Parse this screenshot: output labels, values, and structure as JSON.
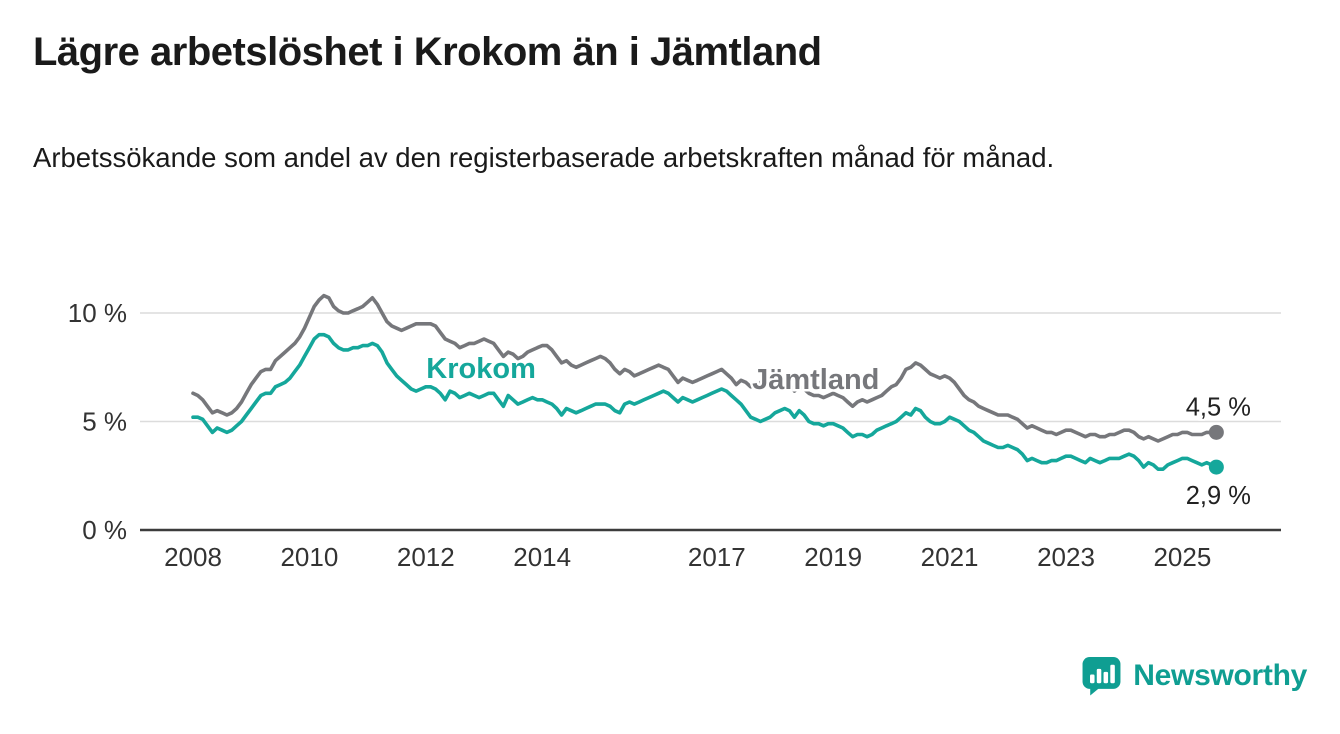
{
  "page": {
    "title": "Lägre arbetslöshet i Krokom än i Jämtland",
    "subtitle": "Arbetssökande som andel av den registerbaserade arbetskraften månad för månad."
  },
  "branding": {
    "name": "Newsworthy",
    "color": "#0f9e92",
    "icon": "bar-chart-speech-bubble-icon"
  },
  "chart_data": {
    "type": "line",
    "title": "Lägre arbetslöshet i Krokom än i Jämtland",
    "subtitle": "Arbetssökande som andel av den registerbaserade arbetskraften månad för månad.",
    "unit": "%",
    "grid": "horizontal",
    "legend_position": "inline-labels",
    "x_start": 2008.0,
    "x_step": 0.0833333,
    "x_end": 2025.5833,
    "ylim": [
      0,
      12
    ],
    "y_axis": {
      "ticks": [
        {
          "value": 0,
          "label": "0 %"
        },
        {
          "value": 5,
          "label": "5 %"
        },
        {
          "value": 10,
          "label": "10 %"
        }
      ]
    },
    "x_axis": {
      "ticks": [
        {
          "value": 2008,
          "label": "2008"
        },
        {
          "value": 2010,
          "label": "2010"
        },
        {
          "value": 2012,
          "label": "2012"
        },
        {
          "value": 2014,
          "label": "2014"
        },
        {
          "value": 2017,
          "label": "2017"
        },
        {
          "value": 2019,
          "label": "2019"
        },
        {
          "value": 2021,
          "label": "2021"
        },
        {
          "value": 2023,
          "label": "2023"
        },
        {
          "value": 2025,
          "label": "2025"
        }
      ]
    },
    "series": [
      {
        "name": "Jämtland",
        "color": "#76777b",
        "end_value": 4.5,
        "end_label": "4,5 %",
        "end_label_side": "above",
        "name_label_at": {
          "x": 2018.7,
          "y": 6.5
        },
        "values": [
          6.3,
          6.2,
          6.0,
          5.7,
          5.4,
          5.5,
          5.4,
          5.3,
          5.4,
          5.6,
          5.9,
          6.3,
          6.7,
          7.0,
          7.3,
          7.4,
          7.4,
          7.8,
          8.0,
          8.2,
          8.4,
          8.6,
          8.9,
          9.3,
          9.8,
          10.3,
          10.6,
          10.8,
          10.7,
          10.3,
          10.1,
          10.0,
          10.0,
          10.1,
          10.2,
          10.3,
          10.5,
          10.7,
          10.4,
          10.0,
          9.6,
          9.4,
          9.3,
          9.2,
          9.3,
          9.4,
          9.5,
          9.5,
          9.5,
          9.5,
          9.4,
          9.1,
          8.8,
          8.7,
          8.6,
          8.4,
          8.5,
          8.6,
          8.6,
          8.7,
          8.8,
          8.7,
          8.6,
          8.3,
          8.0,
          8.2,
          8.1,
          7.9,
          8.0,
          8.2,
          8.3,
          8.4,
          8.5,
          8.5,
          8.3,
          8.0,
          7.7,
          7.8,
          7.6,
          7.5,
          7.6,
          7.7,
          7.8,
          7.9,
          8.0,
          7.9,
          7.7,
          7.4,
          7.2,
          7.4,
          7.3,
          7.1,
          7.2,
          7.3,
          7.4,
          7.5,
          7.6,
          7.5,
          7.4,
          7.1,
          6.8,
          7.0,
          6.9,
          6.8,
          6.9,
          7.0,
          7.1,
          7.2,
          7.3,
          7.4,
          7.2,
          7.0,
          6.7,
          6.9,
          6.8,
          6.6,
          6.7,
          6.8,
          6.9,
          7.0,
          7.1,
          7.0,
          6.9,
          6.7,
          6.4,
          6.6,
          6.5,
          6.3,
          6.2,
          6.2,
          6.1,
          6.2,
          6.3,
          6.2,
          6.1,
          5.9,
          5.7,
          5.9,
          6.0,
          5.9,
          6.0,
          6.1,
          6.2,
          6.4,
          6.6,
          6.7,
          7.0,
          7.4,
          7.5,
          7.7,
          7.6,
          7.4,
          7.2,
          7.1,
          7.0,
          7.1,
          7.0,
          6.8,
          6.5,
          6.2,
          6.0,
          5.9,
          5.7,
          5.6,
          5.5,
          5.4,
          5.3,
          5.3,
          5.3,
          5.2,
          5.1,
          4.9,
          4.7,
          4.8,
          4.7,
          4.6,
          4.5,
          4.5,
          4.4,
          4.5,
          4.6,
          4.6,
          4.5,
          4.4,
          4.3,
          4.4,
          4.4,
          4.3,
          4.3,
          4.4,
          4.4,
          4.5,
          4.6,
          4.6,
          4.5,
          4.3,
          4.2,
          4.3,
          4.2,
          4.1,
          4.2,
          4.3,
          4.4,
          4.4,
          4.5,
          4.5,
          4.4,
          4.4,
          4.4,
          4.5,
          4.5,
          4.5
        ]
      },
      {
        "name": "Krokom",
        "color": "#15a79b",
        "end_value": 2.9,
        "end_label": "2,9 %",
        "end_label_side": "below",
        "name_label_at": {
          "x": 2012.95,
          "y": 7.0
        },
        "values": [
          5.2,
          5.2,
          5.1,
          4.8,
          4.5,
          4.7,
          4.6,
          4.5,
          4.6,
          4.8,
          5.0,
          5.3,
          5.6,
          5.9,
          6.2,
          6.3,
          6.3,
          6.6,
          6.7,
          6.8,
          7.0,
          7.3,
          7.6,
          8.0,
          8.4,
          8.8,
          9.0,
          9.0,
          8.9,
          8.6,
          8.4,
          8.3,
          8.3,
          8.4,
          8.4,
          8.5,
          8.5,
          8.6,
          8.5,
          8.2,
          7.7,
          7.4,
          7.1,
          6.9,
          6.7,
          6.5,
          6.4,
          6.5,
          6.6,
          6.6,
          6.5,
          6.3,
          6.0,
          6.4,
          6.3,
          6.1,
          6.2,
          6.3,
          6.2,
          6.1,
          6.2,
          6.3,
          6.3,
          6.0,
          5.7,
          6.2,
          6.0,
          5.8,
          5.9,
          6.0,
          6.1,
          6.0,
          6.0,
          5.9,
          5.8,
          5.6,
          5.3,
          5.6,
          5.5,
          5.4,
          5.5,
          5.6,
          5.7,
          5.8,
          5.8,
          5.8,
          5.7,
          5.5,
          5.4,
          5.8,
          5.9,
          5.8,
          5.9,
          6.0,
          6.1,
          6.2,
          6.3,
          6.4,
          6.3,
          6.1,
          5.9,
          6.1,
          6.0,
          5.9,
          6.0,
          6.1,
          6.2,
          6.3,
          6.4,
          6.5,
          6.4,
          6.2,
          6.0,
          5.8,
          5.5,
          5.2,
          5.1,
          5.0,
          5.1,
          5.2,
          5.4,
          5.5,
          5.6,
          5.5,
          5.2,
          5.5,
          5.3,
          5.0,
          4.9,
          4.9,
          4.8,
          4.9,
          4.9,
          4.8,
          4.7,
          4.5,
          4.3,
          4.4,
          4.4,
          4.3,
          4.4,
          4.6,
          4.7,
          4.8,
          4.9,
          5.0,
          5.2,
          5.4,
          5.3,
          5.6,
          5.5,
          5.2,
          5.0,
          4.9,
          4.9,
          5.0,
          5.2,
          5.1,
          5.0,
          4.8,
          4.6,
          4.5,
          4.3,
          4.1,
          4.0,
          3.9,
          3.8,
          3.8,
          3.9,
          3.8,
          3.7,
          3.5,
          3.2,
          3.3,
          3.2,
          3.1,
          3.1,
          3.2,
          3.2,
          3.3,
          3.4,
          3.4,
          3.3,
          3.2,
          3.1,
          3.3,
          3.2,
          3.1,
          3.2,
          3.3,
          3.3,
          3.3,
          3.4,
          3.5,
          3.4,
          3.2,
          2.9,
          3.1,
          3.0,
          2.8,
          2.8,
          3.0,
          3.1,
          3.2,
          3.3,
          3.3,
          3.2,
          3.1,
          3.0,
          3.1,
          3.0,
          2.9
        ]
      }
    ]
  }
}
